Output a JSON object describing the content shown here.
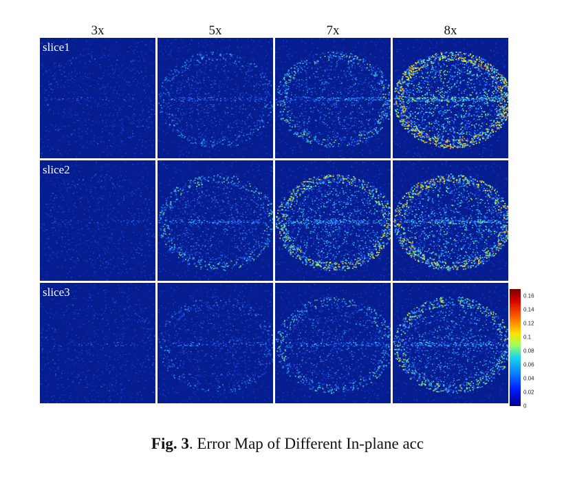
{
  "figure": {
    "columns": [
      "3x",
      "5x",
      "7x",
      "8x"
    ],
    "rows": [
      "slice1",
      "slice2",
      "slice3"
    ],
    "colorbar": {
      "ticks": [
        "0.16",
        "0.14",
        "0.12",
        "0.1",
        "0.08",
        "0.06",
        "0.04",
        "0.02",
        "0"
      ],
      "min": 0,
      "max": 0.17,
      "colors": [
        "#00008a",
        "#0019ff",
        "#0a7fff",
        "#1ed8e6",
        "#9cff5c",
        "#ffe000",
        "#ff6a00",
        "#d40000",
        "#7a0000"
      ]
    },
    "caption_label": "Fig. 3",
    "caption_text": ". Error Map of Different In-plane acc"
  }
}
